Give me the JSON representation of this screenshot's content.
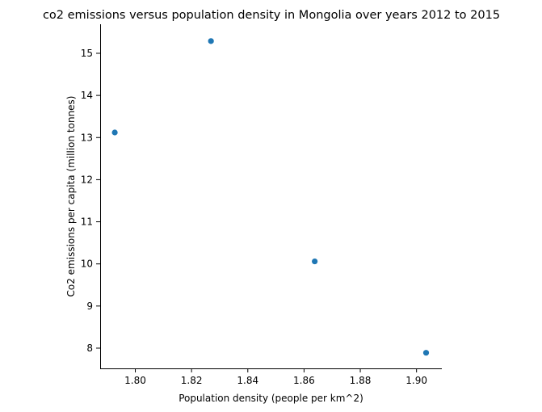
{
  "chart_data": {
    "type": "scatter",
    "title": "co2 emissions versus population density in Mongolia over years 2012 to 2015",
    "xlabel": "Population density (people per km^2)",
    "ylabel": "Co2 emissions per capita (million tonnes)",
    "xlim": [
      1.7875,
      1.909
    ],
    "ylim": [
      7.52,
      15.69
    ],
    "x_ticks": [
      1.8,
      1.82,
      1.84,
      1.86,
      1.88,
      1.9
    ],
    "x_tick_labels": [
      "1.80",
      "1.82",
      "1.84",
      "1.86",
      "1.88",
      "1.90"
    ],
    "y_ticks": [
      8,
      9,
      10,
      11,
      12,
      13,
      14,
      15
    ],
    "y_tick_labels": [
      "8",
      "9",
      "10",
      "11",
      "12",
      "13",
      "14",
      "15"
    ],
    "grid": false,
    "point_color": "#1f77b4",
    "points": [
      {
        "x": 1.7927,
        "y": 13.12
      },
      {
        "x": 1.8269,
        "y": 15.29
      },
      {
        "x": 1.8638,
        "y": 10.06
      },
      {
        "x": 1.9034,
        "y": 7.89
      }
    ]
  }
}
